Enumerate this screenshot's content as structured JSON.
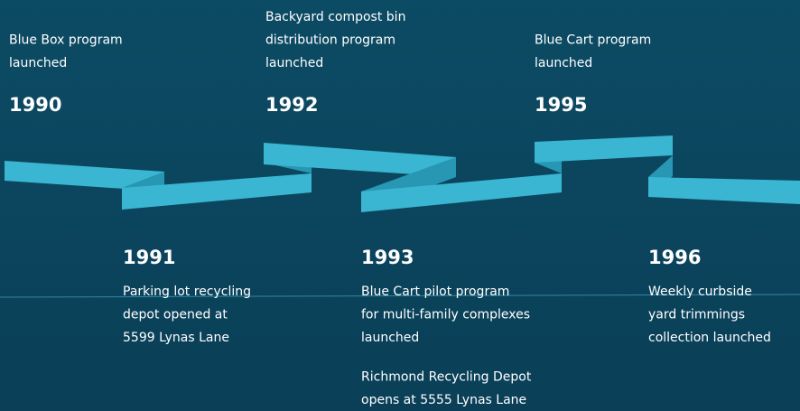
{
  "events": [
    {
      "year": "1990",
      "notes": [
        [
          "Blue Box program",
          "launched"
        ]
      ]
    },
    {
      "year": "1991",
      "notes": [
        [
          "Parking lot recycling",
          "depot opened at",
          "5599 Lynas Lane"
        ]
      ]
    },
    {
      "year": "1992",
      "notes": [
        [
          "Backyard compost bin",
          "distribution program",
          "launched"
        ]
      ]
    },
    {
      "year": "1993",
      "notes": [
        [
          "Blue Cart pilot program",
          "for multi-family complexes",
          "launched"
        ],
        [
          "Richmond Recycling Depot",
          "opens at 5555 Lynas Lane"
        ]
      ]
    },
    {
      "year": "1995",
      "notes": [
        [
          "Blue Cart program",
          "launched"
        ]
      ]
    },
    {
      "year": "1996",
      "notes": [
        [
          "Weekly curbside",
          "yard trimmings",
          "collection launched"
        ]
      ]
    }
  ]
}
